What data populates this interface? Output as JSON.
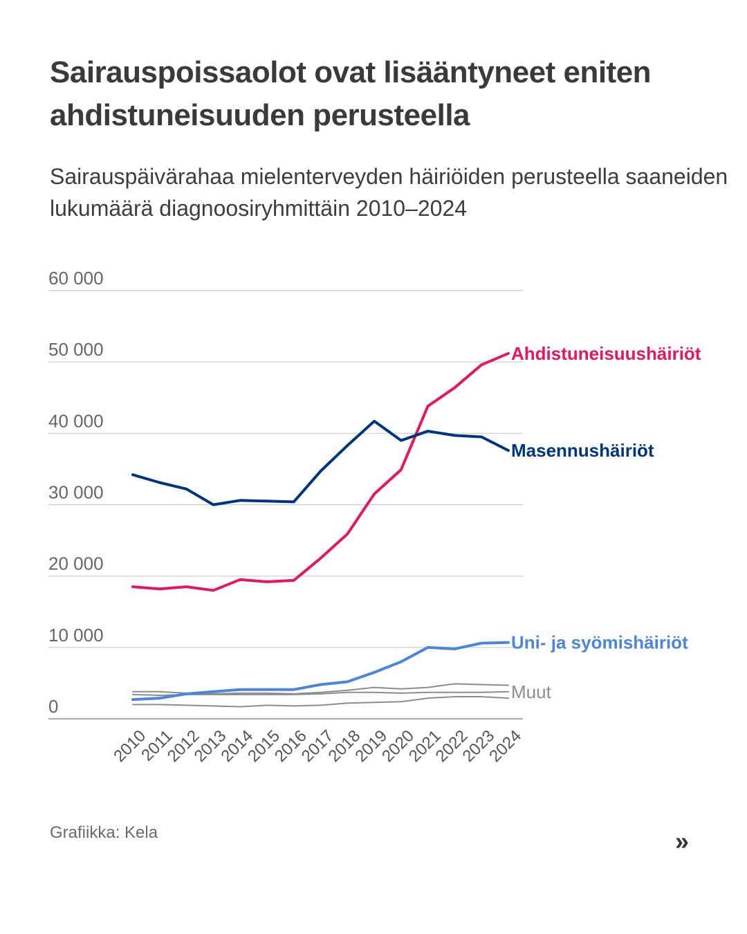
{
  "header": {
    "title": "Sairauspoissaolot ovat lisääntyneet eniten ahdistuneisuuden perusteella",
    "subtitle": "Sairauspäivärahaa mielenterveyden häiriöiden perusteella saaneiden lukumäärä diagnoosiryhmittäin 2010–2024"
  },
  "footer": {
    "source": "Grafiikka: Kela",
    "next_icon": "»"
  },
  "chart_data": {
    "type": "line",
    "title": "Sairauspoissaolot ovat lisääntyneet eniten ahdistuneisuuden perusteella",
    "subtitle": "Sairauspäivärahaa mielenterveyden häiriöiden perusteella saaneiden lukumäärä diagnoosiryhmittäin 2010–2024",
    "xlabel": "",
    "ylabel": "",
    "x": [
      "2010",
      "2011",
      "2012",
      "2013",
      "2014",
      "2015",
      "2016",
      "2017",
      "2018",
      "2019",
      "2020",
      "2021",
      "2022",
      "2023",
      "2024"
    ],
    "ylim": [
      0,
      60000
    ],
    "yticks": [
      0,
      10000,
      20000,
      30000,
      40000,
      50000,
      60000
    ],
    "ytick_labels": [
      "0",
      "10 000",
      "20 000",
      "30 000",
      "40 000",
      "50 000",
      "60 000"
    ],
    "grid": true,
    "legend": "direct labels at line ends (right)",
    "series": [
      {
        "name": "Ahdistuneisuushäiriöt",
        "label": "Ahdistuneisuushäiriöt",
        "color": "#e8175d",
        "emphasis": true,
        "values": [
          18500,
          18200,
          18500,
          18000,
          19500,
          19200,
          19400,
          22500,
          25900,
          31500,
          34900,
          43800,
          46400,
          49600,
          51200
        ]
      },
      {
        "name": "Masennushäiriöt",
        "label": "Masennushäiriöt",
        "color": "#003580",
        "emphasis": true,
        "values": [
          34200,
          33100,
          32200,
          30000,
          30600,
          30500,
          30400,
          34700,
          38300,
          41700,
          39000,
          40300,
          39700,
          39500,
          37600
        ]
      },
      {
        "name": "Uni- ja syömishäiriöt",
        "label": "Uni- ja syömishäiriöt",
        "color": "#4a86e0",
        "emphasis": true,
        "values": [
          2700,
          2900,
          3500,
          3800,
          4100,
          4100,
          4100,
          4800,
          5200,
          6500,
          8000,
          10000,
          9800,
          10600,
          10700
        ]
      },
      {
        "name": "Muut 1",
        "label": "Muut",
        "color": "#8c8c8c",
        "emphasis": false,
        "values": [
          3800,
          3800,
          3600,
          3500,
          3600,
          3600,
          3500,
          3700,
          4000,
          4400,
          4200,
          4400,
          4900,
          4800,
          4700
        ]
      },
      {
        "name": "Muut 2",
        "label": "",
        "color": "#8c8c8c",
        "emphasis": false,
        "values": [
          3400,
          3300,
          3400,
          3400,
          3400,
          3400,
          3400,
          3500,
          3700,
          3700,
          3600,
          3700,
          3700,
          3700,
          3800
        ]
      },
      {
        "name": "Muut 3",
        "label": "",
        "color": "#8c8c8c",
        "emphasis": false,
        "values": [
          2000,
          2000,
          1900,
          1800,
          1700,
          1900,
          1800,
          1900,
          2200,
          2300,
          2400,
          2900,
          3100,
          3100,
          2900
        ]
      }
    ]
  }
}
